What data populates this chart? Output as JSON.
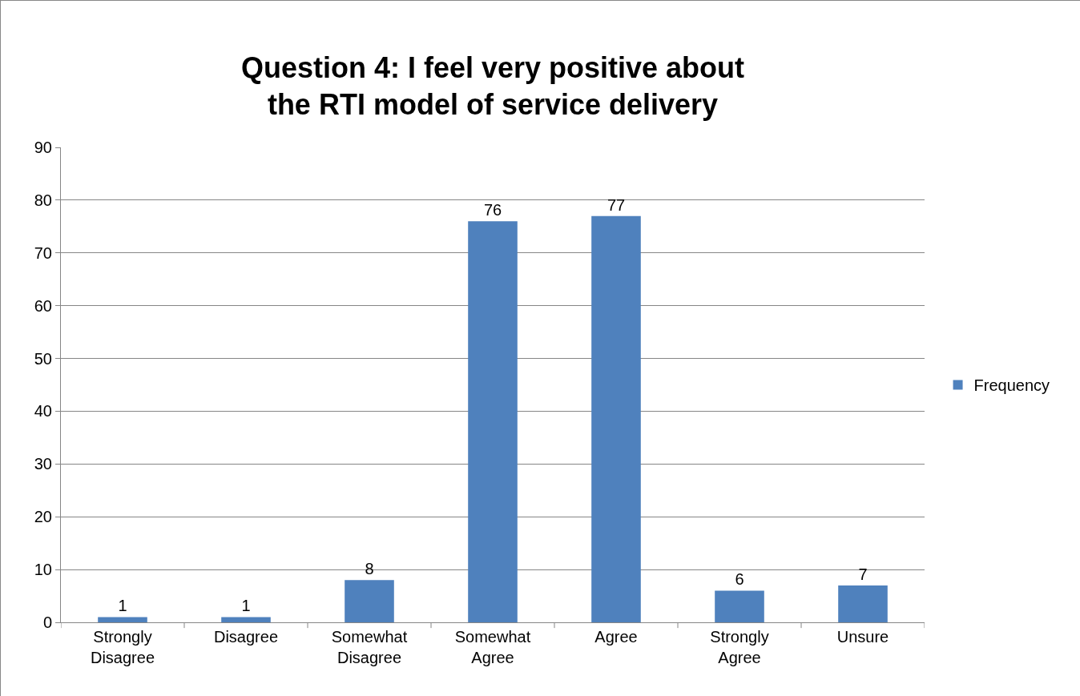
{
  "chart_data": {
    "type": "bar",
    "title": "Question 4: I feel very positive about the RTI model of service delivery",
    "categories": [
      "Strongly Disagree",
      "Disagree",
      "Somewhat Disagree",
      "Somewhat Agree",
      "Agree",
      "Strongly Agree",
      "Unsure"
    ],
    "series": [
      {
        "name": "Frequency",
        "color": "#4f81bd",
        "values": [
          1,
          1,
          8,
          76,
          77,
          6,
          7
        ]
      }
    ],
    "ylim": [
      0,
      90
    ],
    "yticks": [
      0,
      10,
      20,
      30,
      40,
      50,
      60,
      70,
      80,
      90
    ],
    "grid": "y",
    "legend": "right",
    "data_labels": true
  }
}
